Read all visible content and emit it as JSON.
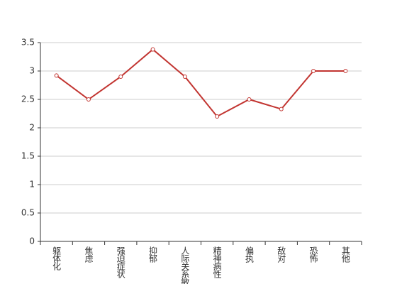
{
  "chart_data": {
    "type": "line",
    "categories": [
      "躯体化",
      "焦虑",
      "强迫症状",
      "抑郁",
      "人际关系敏感",
      "精神病性",
      "偏执",
      "敌对",
      "恐怖",
      "其他"
    ],
    "values": [
      2.92,
      2.5,
      2.9,
      3.38,
      2.9,
      2.2,
      2.5,
      2.33,
      3.0,
      3.0
    ],
    "color": "#c23531",
    "ylim": [
      0,
      3.5
    ],
    "yticks": [
      0,
      0.5,
      1,
      1.5,
      2,
      2.5,
      3,
      3.5
    ],
    "grid": true
  }
}
